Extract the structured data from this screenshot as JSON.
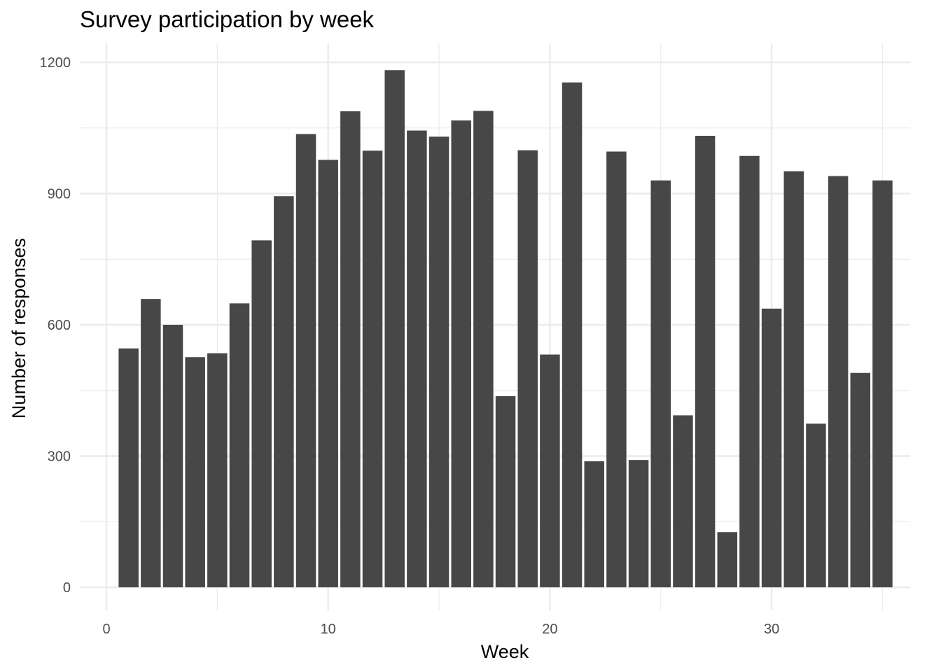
{
  "chart_data": {
    "type": "bar",
    "title": "Survey participation by week",
    "xlabel": "Week",
    "ylabel": "Number of responses",
    "x": [
      1,
      2,
      3,
      4,
      5,
      6,
      7,
      8,
      9,
      10,
      11,
      12,
      13,
      14,
      15,
      16,
      17,
      18,
      19,
      20,
      21,
      22,
      23,
      24,
      25,
      26,
      27,
      28,
      29,
      30,
      31,
      32,
      33,
      34,
      35
    ],
    "values": [
      546,
      659,
      600,
      526,
      535,
      649,
      793,
      894,
      1036,
      977,
      1088,
      998,
      1182,
      1044,
      1030,
      1067,
      1089,
      437,
      999,
      532,
      1154,
      288,
      996,
      291,
      930,
      393,
      1032,
      126,
      986,
      637,
      951,
      374,
      940,
      490,
      930
    ],
    "xlim": [
      0,
      35
    ],
    "ylim": [
      0,
      1200
    ],
    "x_ticks": [
      "0",
      "10",
      "20",
      "30"
    ],
    "y_ticks": [
      "0",
      "300",
      "600",
      "900",
      "1200"
    ],
    "grid": true,
    "legend": "none",
    "bar_color": "#474747",
    "grid_color": "#ebebeb"
  }
}
